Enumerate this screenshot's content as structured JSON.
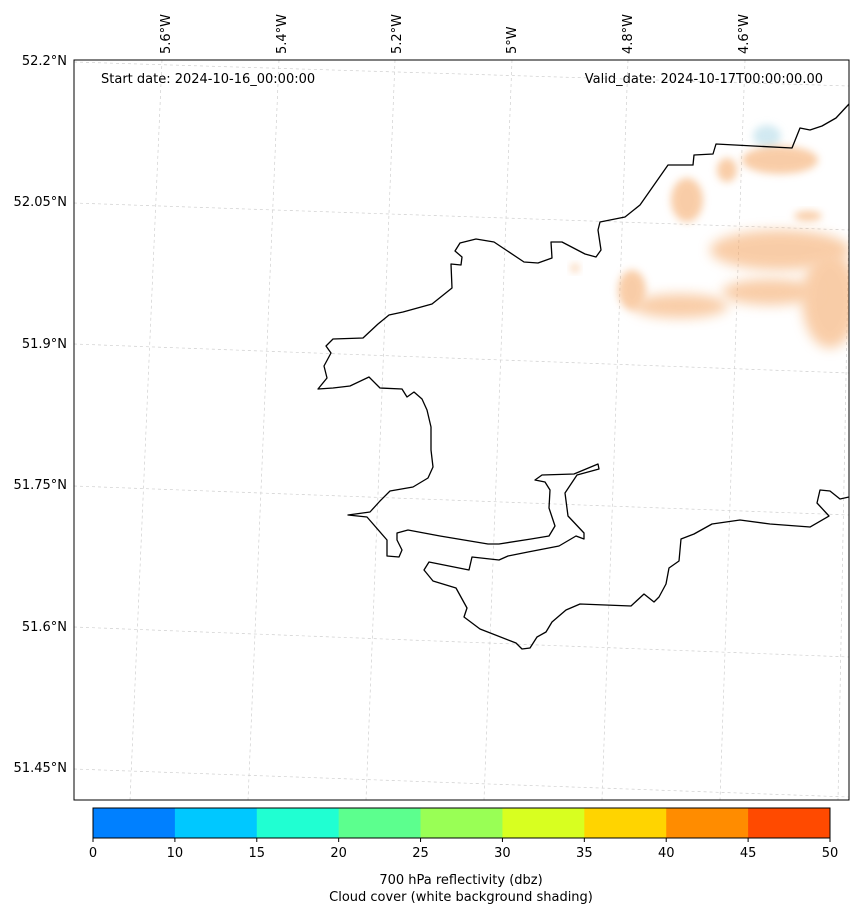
{
  "map": {
    "start_label": "Start date: 2024-10-16_00:00:00",
    "valid_label": "Valid_date: 2024-10-17T00:00:00.00",
    "longitude_labels": [
      "5.6°W",
      "5.4°W",
      "5.2°W",
      "5°W",
      "4.8°W",
      "4.6°W"
    ],
    "latitude_labels": [
      "52.2°N",
      "52.05°N",
      "51.9°N",
      "51.75°N",
      "51.6°N",
      "51.45°N"
    ],
    "gridlines": true,
    "coastline_color": "#000000",
    "cloud_cover_color": "#add8e6",
    "reflectivity_shading_color": "#f4a460"
  },
  "colorbar": {
    "ticks": [
      "0",
      "10",
      "15",
      "20",
      "25",
      "30",
      "35",
      "40",
      "45",
      "50"
    ],
    "colors": [
      "#0080ff",
      "#00c8ff",
      "#20ffd2",
      "#5cff8e",
      "#99ff55",
      "#d8ff20",
      "#ffd400",
      "#ff8c00",
      "#ff4a00"
    ],
    "label_line1": "700 hPa reflectivity (dbz)",
    "label_line2": "Cloud cover (white background shading)"
  }
}
